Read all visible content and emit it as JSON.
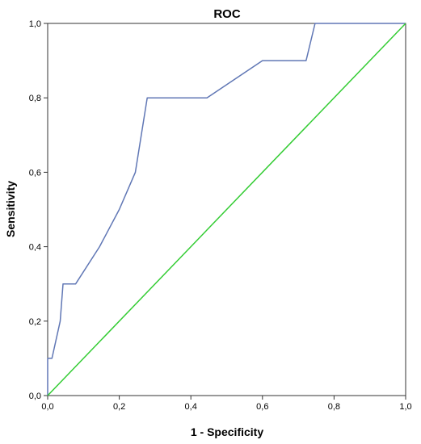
{
  "chart_data": {
    "type": "line",
    "title": "ROC",
    "xlabel": "1 - Specificity",
    "ylabel": "Sensitivity",
    "xlim": [
      0,
      1
    ],
    "ylim": [
      0,
      1
    ],
    "xticks": [
      "0,0",
      "0,2",
      "0,4",
      "0,6",
      "0,8",
      "1,0"
    ],
    "yticks": [
      "0,0",
      "0,2",
      "0,4",
      "0,6",
      "0,8",
      "1,0"
    ],
    "grid": false,
    "series": [
      {
        "color": "#6077B5",
        "x": [
          0,
          0,
          0.012,
          0.035,
          0.043,
          0.078,
          0.145,
          0.2,
          0.245,
          0.278,
          0.445,
          0.6,
          0.722,
          0.747,
          1.0
        ],
        "y": [
          0,
          0.1,
          0.1,
          0.2,
          0.3,
          0.3,
          0.4,
          0.5,
          0.6,
          0.8,
          0.8,
          0.9,
          0.9,
          1.0,
          1.0
        ]
      },
      {
        "color": "#33CC33",
        "x": [
          0,
          1
        ],
        "y": [
          0,
          1
        ]
      }
    ]
  }
}
